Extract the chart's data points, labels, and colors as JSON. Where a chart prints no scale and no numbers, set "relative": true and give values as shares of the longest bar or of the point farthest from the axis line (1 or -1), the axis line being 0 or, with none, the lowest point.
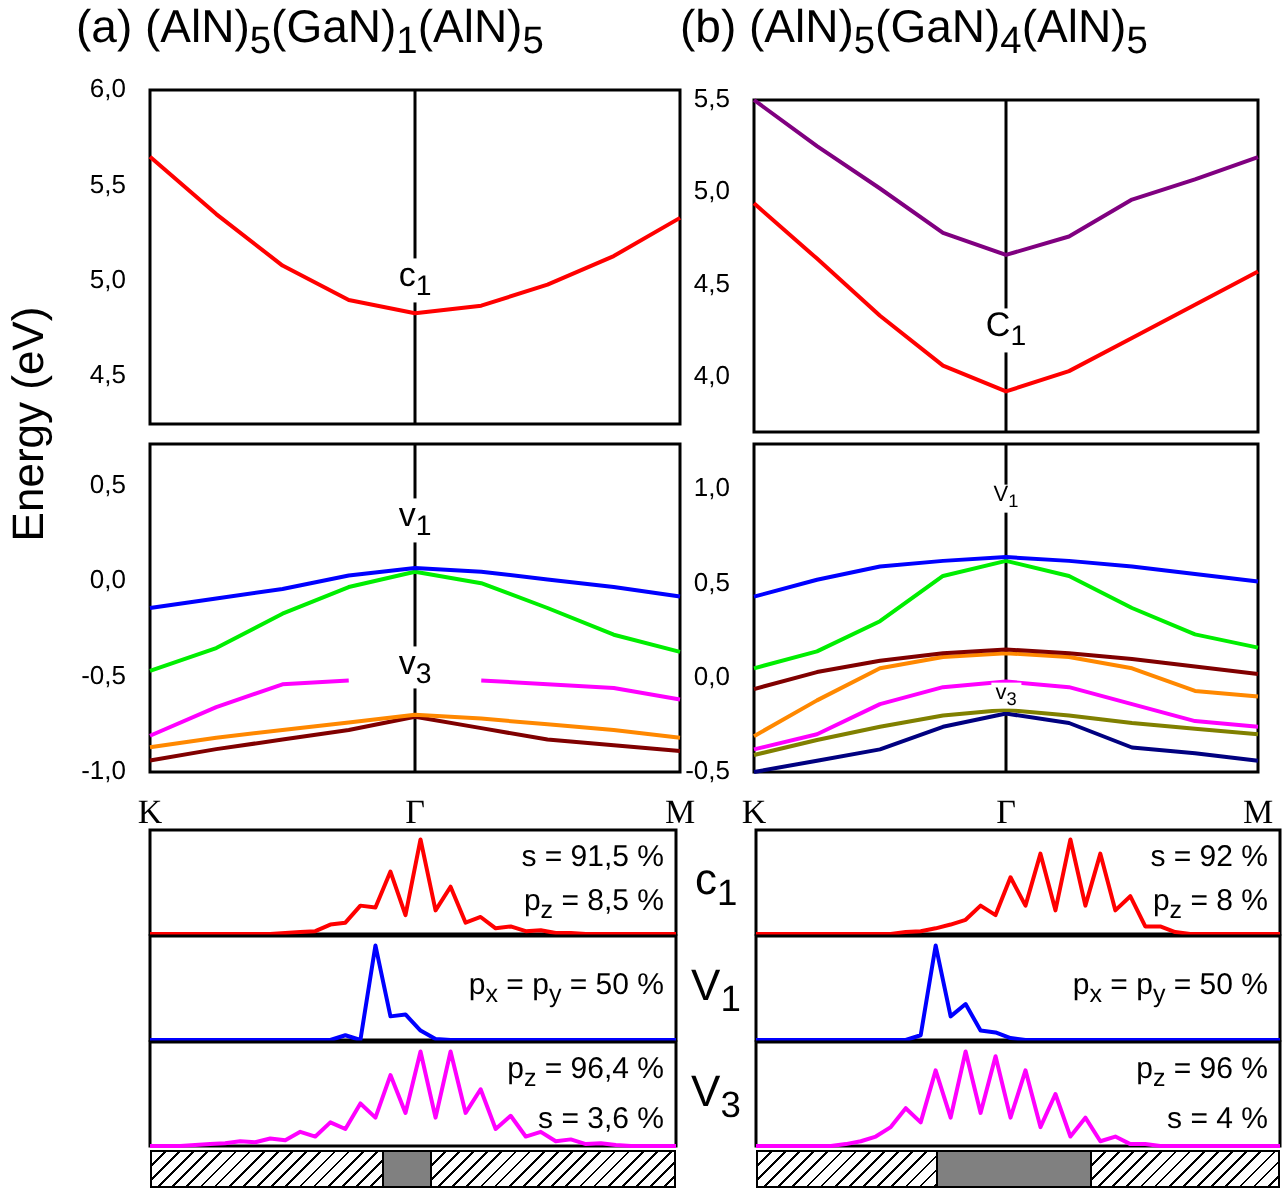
{
  "chart_data": [
    {
      "type": "line",
      "title": "(a) (AlN)$_{5}$(GaN)$_{1}$(AlN)$_{5}$",
      "ylabel": "Energy (eV)",
      "categories": [
        "K",
        null,
        null,
        null,
        "Γ",
        null,
        null,
        null,
        "M"
      ],
      "ylim": [
        4.25,
        6.0
      ],
      "yticks": [
        {
          "value": 4.5,
          "label": "4,5"
        },
        {
          "value": 5.0,
          "label": "5,0"
        },
        {
          "value": 5.5,
          "label": "5,5"
        },
        {
          "value": 6.0,
          "label": "6,0"
        }
      ],
      "tick_labels": "y",
      "marker": "none",
      "series": [
        {
          "color": "#ff0000",
          "values": [
            5.65,
            5.35,
            5.08,
            4.9,
            4.83,
            4.87,
            4.98,
            5.13,
            5.33
          ]
        }
      ],
      "ref_lines": [
        {
          "axis": "x",
          "value": "Γ",
          "color": "#000000"
        }
      ],
      "annotations": [
        {
          "text": "c$_{1}$",
          "x": "Γ",
          "y": 5.0
        }
      ]
    },
    {
      "type": "line",
      "categories": [
        "K",
        null,
        null,
        null,
        "Γ",
        null,
        null,
        null,
        "M"
      ],
      "ylim": [
        -1.0,
        0.72
      ],
      "yticks": [
        {
          "value": -1.0,
          "label": "-1,0"
        },
        {
          "value": -0.5,
          "label": "-0,5"
        },
        {
          "value": 0,
          "label": "0,0"
        },
        {
          "value": 0.5,
          "label": "0,5"
        }
      ],
      "marker": "none",
      "series": [
        {
          "color": "#0000ff",
          "values": [
            -0.14,
            -0.09,
            -0.04,
            0.03,
            0.07,
            0.05,
            0.01,
            -0.03,
            -0.08
          ]
        },
        {
          "color": "#00ee00",
          "values": [
            -0.47,
            -0.35,
            -0.17,
            -0.03,
            0.05,
            -0.01,
            -0.14,
            -0.28,
            -0.37
          ]
        },
        {
          "color": "#ff00ff",
          "values": [
            -0.81,
            -0.66,
            -0.54,
            -0.52,
            null,
            -0.52,
            -0.54,
            -0.56,
            -0.62
          ]
        },
        {
          "color": "#ff8800",
          "values": [
            -0.87,
            -0.82,
            -0.78,
            -0.74,
            -0.7,
            -0.72,
            -0.75,
            -0.78,
            -0.82
          ]
        },
        {
          "color": "#800000",
          "values": [
            -0.94,
            -0.88,
            -0.83,
            -0.78,
            -0.71,
            -0.77,
            -0.83,
            -0.86,
            -0.89
          ]
        }
      ],
      "ref_lines": [
        {
          "axis": "x",
          "value": "Γ",
          "color": "#000000"
        }
      ],
      "annotations": [
        {
          "text": "v$_{1}$",
          "x": "Γ",
          "y": 0.32
        },
        {
          "text": "v$_{3}$",
          "x": "Γ",
          "y": -0.45
        }
      ]
    },
    {
      "type": "line",
      "title": "(b) (AlN)$_{5}$(GaN)$_{4}$(AlN)$_{5}$",
      "categories": [
        "K",
        null,
        null,
        null,
        "Γ",
        null,
        null,
        null,
        "M"
      ],
      "ylim": [
        3.7,
        5.5
      ],
      "yticks": [
        {
          "value": 4.0,
          "label": "4,0"
        },
        {
          "value": 4.5,
          "label": "4,5"
        },
        {
          "value": 5.0,
          "label": "5,0"
        },
        {
          "value": 5.5,
          "label": "5,5"
        }
      ],
      "tick_labels": "y",
      "marker": "none",
      "series": [
        {
          "color": "#800080",
          "values": [
            5.5,
            5.25,
            5.02,
            4.78,
            4.66,
            4.76,
            4.96,
            5.07,
            5.19
          ]
        },
        {
          "color": "#ff0000",
          "values": [
            4.94,
            4.64,
            4.33,
            4.06,
            3.92,
            4.03,
            4.21,
            4.39,
            4.57
          ]
        }
      ],
      "ref_lines": [
        {
          "axis": "x",
          "value": "Γ",
          "color": "#000000"
        }
      ],
      "annotations": [
        {
          "text": "C$_{1}$",
          "x": "Γ",
          "y": 4.25
        }
      ]
    },
    {
      "type": "line",
      "categories": [
        "K",
        null,
        null,
        null,
        "Γ",
        null,
        null,
        null,
        "M"
      ],
      "ylim": [
        -0.5,
        1.24
      ],
      "yticks": [
        {
          "value": -0.5,
          "label": "-0,5"
        },
        {
          "value": 0,
          "label": "0,0"
        },
        {
          "value": 0.5,
          "label": "0,5"
        },
        {
          "value": 1.0,
          "label": "1,0"
        }
      ],
      "marker": "none",
      "series": [
        {
          "color": "#0000ff",
          "values": [
            0.43,
            0.52,
            0.59,
            0.62,
            0.64,
            0.62,
            0.59,
            0.55,
            0.51
          ]
        },
        {
          "color": "#00ee00",
          "values": [
            0.05,
            0.14,
            0.3,
            0.54,
            0.62,
            0.54,
            0.37,
            0.23,
            0.16
          ]
        },
        {
          "color": "#800000",
          "values": [
            -0.06,
            0.03,
            0.09,
            0.13,
            0.15,
            0.13,
            0.1,
            0.06,
            0.02
          ]
        },
        {
          "color": "#ff8800",
          "values": [
            -0.31,
            -0.12,
            0.05,
            0.11,
            0.13,
            0.11,
            0.05,
            -0.07,
            -0.1
          ]
        },
        {
          "color": "#ff00ff",
          "values": [
            -0.38,
            -0.3,
            -0.14,
            -0.05,
            -0.02,
            -0.05,
            -0.14,
            -0.23,
            -0.26
          ]
        },
        {
          "color": "#808000",
          "values": [
            -0.41,
            -0.33,
            -0.26,
            -0.2,
            -0.17,
            -0.2,
            -0.24,
            -0.27,
            -0.3
          ]
        },
        {
          "color": "#000080",
          "values": [
            -0.5,
            -0.44,
            -0.38,
            -0.26,
            -0.19,
            -0.24,
            -0.37,
            -0.4,
            -0.44
          ]
        }
      ],
      "ref_lines": [
        {
          "axis": "x",
          "value": "Γ",
          "color": "#000000"
        }
      ],
      "annotations": [
        {
          "text": "V$_{1}$",
          "x": "Γ",
          "y": 0.95
        },
        {
          "text": "v$_{3}$",
          "x": "Γ",
          "y": -0.095
        }
      ]
    },
    {
      "type": "line",
      "relative": true,
      "tick_labels": false,
      "marker": "none",
      "categories": [
        null,
        null,
        null,
        null,
        null,
        null,
        null,
        null,
        null,
        null,
        null,
        null,
        null,
        null,
        null,
        null,
        null,
        null,
        null,
        null,
        null,
        null,
        null,
        null,
        null,
        null,
        null,
        null,
        null,
        null,
        null,
        null,
        null,
        null,
        null,
        null
      ],
      "series": [
        {
          "color": "#ff0000",
          "values": [
            0,
            0,
            0,
            0,
            0,
            0,
            0,
            0,
            0,
            0.01,
            0.02,
            0.03,
            0.1,
            0.12,
            0.3,
            0.28,
            0.66,
            0.2,
            1,
            0.25,
            0.5,
            0.12,
            0.18,
            0.06,
            0.08,
            0.03,
            0.04,
            0.01,
            0.01,
            0,
            0,
            0,
            0,
            0,
            0,
            0
          ]
        }
      ],
      "annotations": [
        "s = 91,5 %",
        "p$_{z}$ = 8,5 %"
      ]
    },
    {
      "type": "line",
      "relative": true,
      "tick_labels": false,
      "marker": "none",
      "categories": [
        null,
        null,
        null,
        null,
        null,
        null,
        null,
        null,
        null,
        null,
        null,
        null,
        null,
        null,
        null,
        null,
        null,
        null,
        null,
        null,
        null,
        null,
        null,
        null,
        null,
        null,
        null,
        null,
        null,
        null,
        null,
        null,
        null,
        null,
        null,
        null
      ],
      "series": [
        {
          "color": "#0000ff",
          "values": [
            0,
            0,
            0,
            0,
            0,
            0,
            0,
            0,
            0,
            0,
            0,
            0,
            0,
            0.05,
            0,
            1,
            0.25,
            0.27,
            0.1,
            0.01,
            0,
            0,
            0,
            0,
            0,
            0,
            0,
            0,
            0,
            0,
            0,
            0,
            0,
            0,
            0,
            0
          ]
        }
      ],
      "annotations": [
        "p$_{x}$ = p$_{y}$ = 50 %"
      ]
    },
    {
      "type": "line",
      "relative": true,
      "tick_labels": false,
      "marker": "none",
      "categories": [
        null,
        null,
        null,
        null,
        null,
        null,
        null,
        null,
        null,
        null,
        null,
        null,
        null,
        null,
        null,
        null,
        null,
        null,
        null,
        null,
        null,
        null,
        null,
        null,
        null,
        null,
        null,
        null,
        null,
        null,
        null,
        null,
        null,
        null,
        null,
        null
      ],
      "series": [
        {
          "color": "#ff00ff",
          "values": [
            0,
            0,
            0,
            0.01,
            0.02,
            0.03,
            0.05,
            0.04,
            0.08,
            0.06,
            0.15,
            0.1,
            0.25,
            0.18,
            0.45,
            0.3,
            0.75,
            0.35,
            1,
            0.3,
            1,
            0.35,
            0.6,
            0.18,
            0.32,
            0.1,
            0.15,
            0.05,
            0.07,
            0.02,
            0.03,
            0.01,
            0,
            0,
            0,
            0
          ]
        }
      ],
      "annotations": [
        "p$_{z}$ = 96,4 %",
        "s = 3,6 %"
      ]
    },
    {
      "type": "line",
      "relative": true,
      "tick_labels": false,
      "marker": "none",
      "ylabel": "c$_{1}$",
      "categories": [
        null,
        null,
        null,
        null,
        null,
        null,
        null,
        null,
        null,
        null,
        null,
        null,
        null,
        null,
        null,
        null,
        null,
        null,
        null,
        null,
        null,
        null,
        null,
        null,
        null,
        null,
        null,
        null,
        null,
        null,
        null,
        null,
        null,
        null,
        null,
        null
      ],
      "series": [
        {
          "color": "#ff0000",
          "values": [
            0,
            0,
            0,
            0,
            0,
            0,
            0,
            0,
            0,
            0,
            0.02,
            0.03,
            0.06,
            0.1,
            0.15,
            0.3,
            0.2,
            0.6,
            0.3,
            0.85,
            0.25,
            1,
            0.3,
            0.85,
            0.25,
            0.4,
            0.08,
            0.08,
            0.02,
            0,
            0,
            0,
            0,
            0,
            0,
            0
          ]
        }
      ],
      "annotations": [
        "s = 92 %",
        "p$_{z}$ = 8 %"
      ]
    },
    {
      "type": "line",
      "relative": true,
      "tick_labels": false,
      "marker": "none",
      "ylabel": "V$_{1}$",
      "categories": [
        null,
        null,
        null,
        null,
        null,
        null,
        null,
        null,
        null,
        null,
        null,
        null,
        null,
        null,
        null,
        null,
        null,
        null,
        null,
        null,
        null,
        null,
        null,
        null,
        null,
        null,
        null,
        null,
        null,
        null,
        null,
        null,
        null,
        null,
        null,
        null
      ],
      "series": [
        {
          "color": "#0000ff",
          "values": [
            0,
            0,
            0,
            0,
            0,
            0,
            0,
            0,
            0,
            0,
            0,
            0.05,
            1,
            0.25,
            0.38,
            0.1,
            0.08,
            0.02,
            0,
            0,
            0,
            0,
            0,
            0,
            0,
            0,
            0,
            0,
            0,
            0,
            0,
            0,
            0,
            0,
            0,
            0
          ]
        }
      ],
      "annotations": [
        "p$_{x}$ = p$_{y}$ = 50 %"
      ]
    },
    {
      "type": "line",
      "relative": true,
      "tick_labels": false,
      "marker": "none",
      "ylabel": "V$_{3}$",
      "categories": [
        null,
        null,
        null,
        null,
        null,
        null,
        null,
        null,
        null,
        null,
        null,
        null,
        null,
        null,
        null,
        null,
        null,
        null,
        null,
        null,
        null,
        null,
        null,
        null,
        null,
        null,
        null,
        null,
        null,
        null,
        null,
        null,
        null,
        null,
        null,
        null
      ],
      "series": [
        {
          "color": "#ff00ff",
          "values": [
            0,
            0,
            0,
            0,
            0,
            0,
            0.02,
            0.05,
            0.1,
            0.2,
            0.4,
            0.25,
            0.8,
            0.3,
            1,
            0.35,
            0.95,
            0.3,
            0.8,
            0.2,
            0.55,
            0.1,
            0.3,
            0.05,
            0.1,
            0.02,
            0.02,
            0,
            0,
            0,
            0,
            0,
            0,
            0,
            0,
            0
          ]
        }
      ],
      "annotations": [
        "p$_{z}$ = 96 %",
        "s = 4 %"
      ]
    }
  ]
}
